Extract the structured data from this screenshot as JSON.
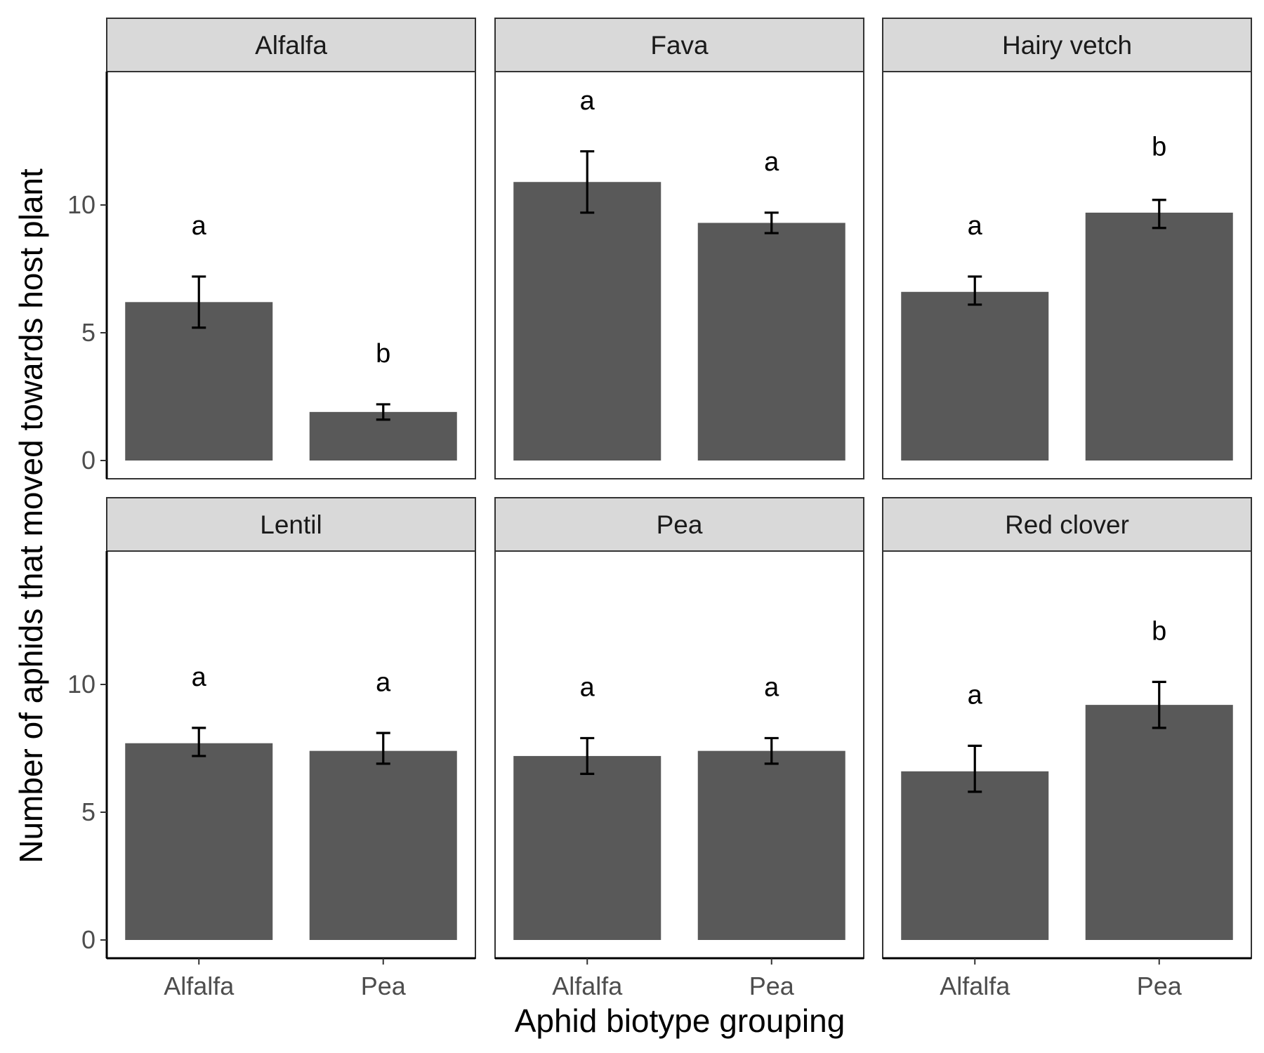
{
  "chart_data": {
    "type": "bar",
    "xlabel": "Aphid biotype grouping",
    "ylabel": "Number of aphids that moved towards host plant",
    "ylim": [
      0,
      15
    ],
    "yticks": [
      0,
      5,
      10
    ],
    "categories": [
      "Alfalfa",
      "Pea"
    ],
    "facet_layout": "2 rows x 3 columns",
    "colors": {
      "bar": "#595959",
      "strip": "#d9d9d9",
      "errorbar": "#000000",
      "frame": "#333333"
    },
    "panels": [
      {
        "name": "Alfalfa",
        "values": [
          6.2,
          1.9
        ],
        "lower": [
          5.2,
          1.6
        ],
        "upper": [
          7.2,
          2.2
        ],
        "letters": [
          "a",
          "b"
        ],
        "letter_y": [
          9.2,
          4.2
        ]
      },
      {
        "name": "Fava",
        "values": [
          10.9,
          9.3
        ],
        "lower": [
          9.7,
          8.9
        ],
        "upper": [
          12.1,
          9.7
        ],
        "letters": [
          "a",
          "a"
        ],
        "letter_y": [
          14.1,
          11.7
        ]
      },
      {
        "name": "Hairy vetch",
        "values": [
          6.6,
          9.7
        ],
        "lower": [
          6.1,
          9.1
        ],
        "upper": [
          7.2,
          10.2
        ],
        "letters": [
          "a",
          "b"
        ],
        "letter_y": [
          9.2,
          12.3
        ]
      },
      {
        "name": "Lentil",
        "values": [
          7.7,
          7.4
        ],
        "lower": [
          7.2,
          6.9
        ],
        "upper": [
          8.3,
          8.1
        ],
        "letters": [
          "a",
          "a"
        ],
        "letter_y": [
          10.3,
          10.1
        ]
      },
      {
        "name": "Pea",
        "values": [
          7.2,
          7.4
        ],
        "lower": [
          6.5,
          6.9
        ],
        "upper": [
          7.9,
          7.9
        ],
        "letters": [
          "a",
          "a"
        ],
        "letter_y": [
          9.9,
          9.9
        ]
      },
      {
        "name": "Red clover",
        "values": [
          6.6,
          9.2
        ],
        "lower": [
          5.8,
          8.3
        ],
        "upper": [
          7.6,
          10.1
        ],
        "letters": [
          "a",
          "b"
        ],
        "letter_y": [
          9.6,
          12.1
        ]
      }
    ]
  }
}
